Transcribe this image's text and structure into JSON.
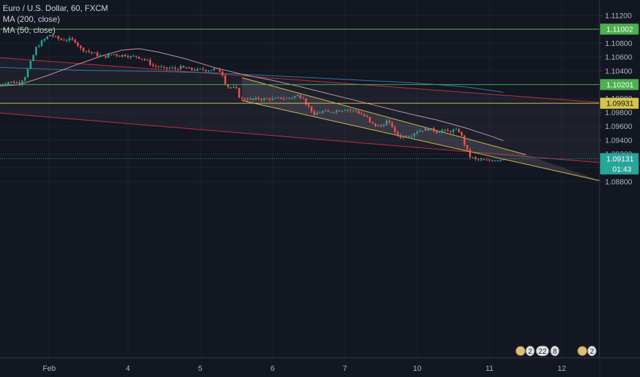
{
  "chart_data": {
    "type": "candlestick",
    "title": "Euro / U.S. Dollar, 60, FXCM",
    "indicators": [
      "MA (200, close)",
      "MA (50, close)"
    ],
    "ylim": [
      1.0874,
      1.1128
    ],
    "y_ticks": [
      "1.11200",
      "1.11000",
      "1.10800",
      "1.10600",
      "1.10400",
      "1.10200",
      "1.10000",
      "1.09800",
      "1.09600",
      "1.09400",
      "1.09200",
      "1.09000",
      "1.08800"
    ],
    "x_ticks": [
      {
        "label": "Feb",
        "t": 0.7
      },
      {
        "label": "4",
        "t": 29
      },
      {
        "label": "5",
        "t": 55
      },
      {
        "label": "6",
        "t": 81
      },
      {
        "label": "7",
        "t": 107
      },
      {
        "label": "10",
        "t": 133
      },
      {
        "label": "11",
        "t": 159
      },
      {
        "label": "12",
        "t": 185
      }
    ],
    "horizontal_levels": [
      {
        "price": 1.11002,
        "label": "1.11002",
        "color": "#4caf50"
      },
      {
        "price": 1.10201,
        "label": "1.10201",
        "color": "#4caf50"
      },
      {
        "price": 1.09931,
        "label": "1.09931",
        "color": "#d4c44a"
      }
    ],
    "last_price": {
      "label": "1.09131",
      "countdown": "01:43",
      "color": "#26a69a"
    },
    "trend_channels": [
      {
        "name": "wide",
        "color": "#c2333f",
        "upper": [
          [
            -17,
            1.1059
          ],
          [
            200,
            1.0994
          ]
        ],
        "lower": [
          [
            -17,
            1.0979
          ],
          [
            200,
            1.0907
          ]
        ]
      },
      {
        "name": "descending",
        "color": "#d4c44a",
        "upper": [
          [
            70,
            1.103
          ],
          [
            172,
            1.0919
          ]
        ],
        "lower": [
          [
            70,
            1.0997
          ],
          [
            200,
            1.088
          ]
        ]
      }
    ],
    "moving_averages": [
      {
        "name": "MA (200, close)",
        "color": "#2e7fa8",
        "points": [
          [
            -17,
            1.1045
          ],
          [
            10,
            1.1041
          ],
          [
            40,
            1.1039
          ],
          [
            60,
            1.1037
          ],
          [
            100,
            1.1029
          ],
          [
            130,
            1.1023
          ],
          [
            150,
            1.1017
          ],
          [
            164,
            1.1009
          ]
        ]
      },
      {
        "name": "MA (50, close)",
        "color": "#c89aa8",
        "points": [
          [
            -17,
            1.1018
          ],
          [
            -10,
            1.102
          ],
          [
            0,
            1.1033
          ],
          [
            10,
            1.1048
          ],
          [
            20,
            1.1062
          ],
          [
            27,
            1.107
          ],
          [
            33,
            1.1072
          ],
          [
            40,
            1.1067
          ],
          [
            50,
            1.1057
          ],
          [
            60,
            1.1045
          ],
          [
            70,
            1.1035
          ],
          [
            80,
            1.1027
          ],
          [
            90,
            1.1018
          ],
          [
            100,
            1.1008
          ],
          [
            110,
            1.0998
          ],
          [
            120,
            1.0988
          ],
          [
            130,
            1.0978
          ],
          [
            140,
            1.0969
          ],
          [
            150,
            1.0958
          ],
          [
            160,
            1.0945
          ],
          [
            164,
            1.0939
          ]
        ]
      }
    ],
    "price_path": [
      [
        -17,
        1.102
      ],
      [
        -14,
        1.1024
      ],
      [
        -10,
        1.1023
      ],
      [
        -8,
        1.1032
      ],
      [
        -6,
        1.1052
      ],
      [
        -4,
        1.1073
      ],
      [
        -2,
        1.1082
      ],
      [
        0,
        1.1089
      ],
      [
        1,
        1.1092
      ],
      [
        3,
        1.1088
      ],
      [
        5,
        1.1085
      ],
      [
        8,
        1.1085
      ],
      [
        10,
        1.1083
      ],
      [
        12,
        1.1072
      ],
      [
        14,
        1.1069
      ],
      [
        16,
        1.1066
      ],
      [
        18,
        1.1063
      ],
      [
        20,
        1.106
      ],
      [
        22,
        1.1062
      ],
      [
        24,
        1.1064
      ],
      [
        26,
        1.1062
      ],
      [
        28,
        1.1063
      ],
      [
        30,
        1.106
      ],
      [
        32,
        1.1061
      ],
      [
        34,
        1.1058
      ],
      [
        36,
        1.1054
      ],
      [
        38,
        1.1047
      ],
      [
        40,
        1.1046
      ],
      [
        42,
        1.1043
      ],
      [
        44,
        1.1044
      ],
      [
        46,
        1.1043
      ],
      [
        48,
        1.1045
      ],
      [
        50,
        1.1043
      ],
      [
        52,
        1.1042
      ],
      [
        54,
        1.1041
      ],
      [
        56,
        1.1042
      ],
      [
        58,
        1.1041
      ],
      [
        60,
        1.1043
      ],
      [
        62,
        1.104
      ],
      [
        63,
        1.1035
      ],
      [
        64,
        1.1022
      ],
      [
        65,
        1.1017
      ],
      [
        67,
        1.1015
      ],
      [
        68,
        1.1013
      ],
      [
        69,
        1.1003
      ],
      [
        70,
        1.0999
      ],
      [
        72,
        1.1
      ],
      [
        74,
        1.0998
      ],
      [
        76,
        1.1
      ],
      [
        78,
        1.0999
      ],
      [
        80,
        1.1
      ],
      [
        82,
        1.0999
      ],
      [
        84,
        1.1001
      ],
      [
        86,
        1.1
      ],
      [
        88,
        1.1002
      ],
      [
        90,
        1.1004
      ],
      [
        92,
        1.1002
      ],
      [
        93,
        1.0993
      ],
      [
        95,
        1.0983
      ],
      [
        96,
        1.0974
      ],
      [
        97,
        1.0979
      ],
      [
        99,
        1.0981
      ],
      [
        101,
        1.098
      ],
      [
        103,
        1.0982
      ],
      [
        105,
        1.0983
      ],
      [
        107,
        1.0985
      ],
      [
        109,
        1.0983
      ],
      [
        111,
        1.0982
      ],
      [
        113,
        1.0977
      ],
      [
        115,
        1.0972
      ],
      [
        116,
        1.0965
      ],
      [
        118,
        1.0961
      ],
      [
        120,
        1.096
      ],
      [
        122,
        1.0967
      ],
      [
        124,
        1.096
      ],
      [
        125,
        1.095
      ],
      [
        127,
        1.0945
      ],
      [
        129,
        1.0946
      ],
      [
        131,
        1.0948
      ],
      [
        133,
        1.0953
      ],
      [
        135,
        1.0955
      ],
      [
        137,
        1.0956
      ],
      [
        139,
        1.0954
      ],
      [
        140,
        1.0952
      ],
      [
        142,
        1.0954
      ],
      [
        144,
        1.0952
      ],
      [
        146,
        1.0954
      ],
      [
        148,
        1.0953
      ],
      [
        149,
        1.0945
      ],
      [
        150,
        1.0934
      ],
      [
        151,
        1.0924
      ],
      [
        152,
        1.0916
      ],
      [
        154,
        1.0912
      ],
      [
        156,
        1.0911
      ],
      [
        158,
        1.091
      ],
      [
        160,
        1.0911
      ],
      [
        162,
        1.0912
      ],
      [
        164,
        1.0913
      ]
    ]
  },
  "event_markers": [
    {
      "group": "a",
      "labels": [
        "2",
        "22",
        "8"
      ]
    },
    {
      "group": "b",
      "labels": [
        "2"
      ]
    }
  ]
}
